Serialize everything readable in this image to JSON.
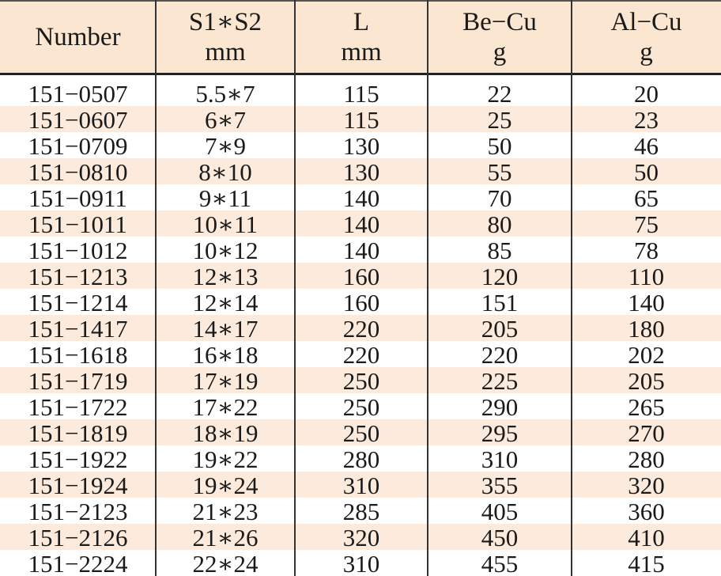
{
  "table": {
    "header": [
      [
        "Number"
      ],
      [
        "S1∗S2",
        "mm"
      ],
      [
        "L",
        "mm"
      ],
      [
        "Be−Cu",
        "g"
      ],
      [
        "Al−Cu",
        "g"
      ]
    ],
    "rows": [
      [
        "151−0507",
        "5.5∗7",
        115,
        22,
        20
      ],
      [
        "151−0607",
        "6∗7",
        115,
        25,
        23
      ],
      [
        "151−0709",
        "7∗9",
        130,
        50,
        46
      ],
      [
        "151−0810",
        "8∗10",
        130,
        55,
        50
      ],
      [
        "151−0911",
        "9∗11",
        140,
        70,
        65
      ],
      [
        "151−1011",
        "10∗11",
        140,
        80,
        75
      ],
      [
        "151−1012",
        "10∗12",
        140,
        85,
        78
      ],
      [
        "151−1213",
        "12∗13",
        160,
        120,
        110
      ],
      [
        "151−1214",
        "12∗14",
        160,
        151,
        140
      ],
      [
        "151−1417",
        "14∗17",
        220,
        205,
        180
      ],
      [
        "151−1618",
        "16∗18",
        220,
        220,
        202
      ],
      [
        "151−1719",
        "17∗19",
        250,
        225,
        205
      ],
      [
        "151−1722",
        "17∗22",
        250,
        290,
        265
      ],
      [
        "151−1819",
        "18∗19",
        250,
        295,
        270
      ],
      [
        "151−1922",
        "19∗22",
        280,
        310,
        280
      ],
      [
        "151−1924",
        "19∗24",
        310,
        355,
        320
      ],
      [
        "151−2123",
        "21∗23",
        285,
        405,
        360
      ],
      [
        "151−2126",
        "21∗26",
        320,
        450,
        410
      ],
      [
        "151−2224",
        "22∗24",
        310,
        455,
        415
      ]
    ]
  }
}
